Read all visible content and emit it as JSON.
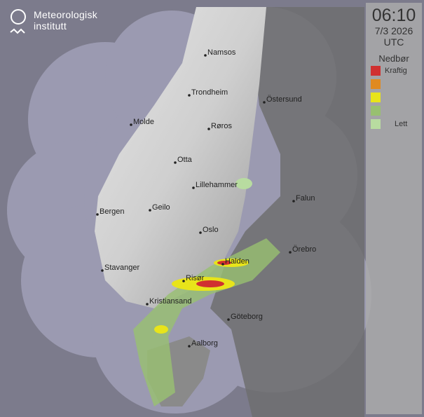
{
  "logo": {
    "line1": "Meteorologisk",
    "line2": "institutt"
  },
  "panel": {
    "time": "06:10",
    "date": "7/3 2026",
    "timezone": "UTC",
    "legend_title": "Nedbør",
    "legend": [
      {
        "label": "Kraftig",
        "color": "#d03030"
      },
      {
        "label": "",
        "color": "#e08a20"
      },
      {
        "label": "",
        "color": "#e8e41a"
      },
      {
        "label": "",
        "color": "#98c070"
      },
      {
        "label": "Lett",
        "color": "#b8dca0"
      }
    ]
  },
  "cities": [
    {
      "name": "Namsos"
    },
    {
      "name": "Trondheim"
    },
    {
      "name": "Östersund"
    },
    {
      "name": "Molde"
    },
    {
      "name": "Røros"
    },
    {
      "name": "Otta"
    },
    {
      "name": "Lillehammer"
    },
    {
      "name": "Falun"
    },
    {
      "name": "Bergen"
    },
    {
      "name": "Geilo"
    },
    {
      "name": "Oslo"
    },
    {
      "name": "Örebro"
    },
    {
      "name": "Stavanger"
    },
    {
      "name": "Halden"
    },
    {
      "name": "Risør"
    },
    {
      "name": "Kristiansand"
    },
    {
      "name": "Göteborg"
    },
    {
      "name": "Aalborg"
    }
  ]
}
